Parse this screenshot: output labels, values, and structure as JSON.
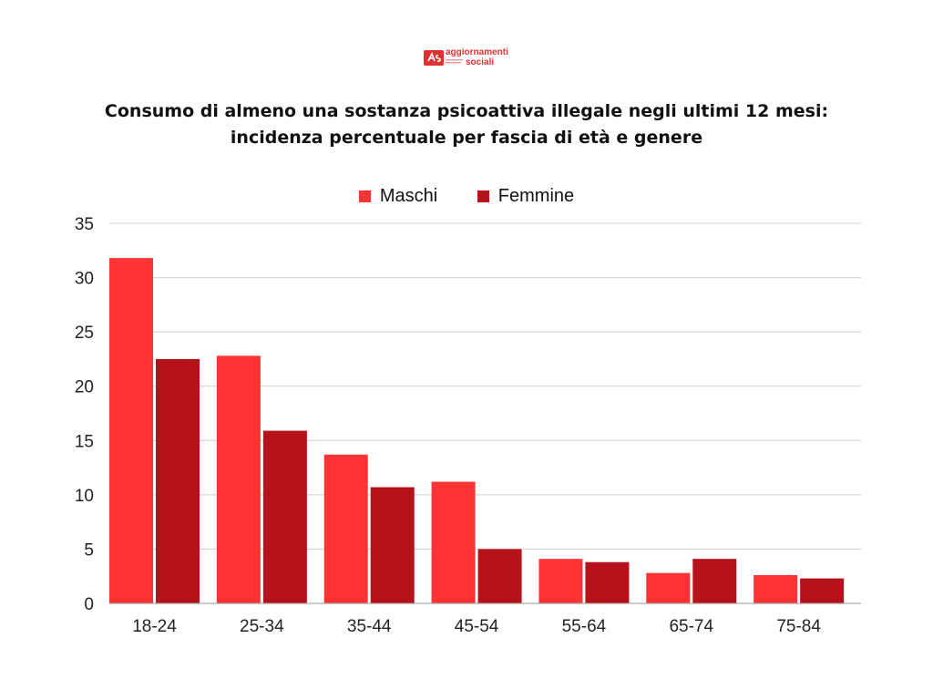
{
  "logo": {
    "line1": "aggiornamenti",
    "line2": "sociali"
  },
  "title": {
    "line1": "Consumo di almeno una sostanza psicoattiva illegale negli ultimi 12 mesi:",
    "line2": "incidenza percentuale per fascia di età e genere"
  },
  "colors": {
    "maschi": "#ff3333",
    "femmine": "#b5121b",
    "brand": "#e03131",
    "gridline": "#d0d0d0",
    "axis": "#9a9a9a"
  },
  "legend": [
    {
      "label": "Maschi",
      "color": "#ff3333"
    },
    {
      "label": "Femmine",
      "color": "#b5121b"
    }
  ],
  "chart_data": {
    "type": "bar",
    "title": "Consumo di almeno una sostanza psicoattiva illegale negli ultimi 12 mesi: incidenza percentuale per fascia di età e genere",
    "xlabel": "",
    "ylabel": "",
    "categories": [
      "18-24",
      "25-34",
      "35-44",
      "45-54",
      "55-64",
      "65-74",
      "75-84"
    ],
    "series": [
      {
        "name": "Maschi",
        "values": [
          31.8,
          22.8,
          13.7,
          11.2,
          4.1,
          2.8,
          2.6
        ]
      },
      {
        "name": "Femmine",
        "values": [
          22.5,
          15.9,
          10.7,
          5.0,
          3.8,
          4.1,
          2.3
        ]
      }
    ],
    "ylim": [
      0,
      35
    ],
    "yticks": [
      0,
      5,
      10,
      15,
      20,
      25,
      30,
      35
    ],
    "grid": true,
    "legend_position": "top-center"
  }
}
